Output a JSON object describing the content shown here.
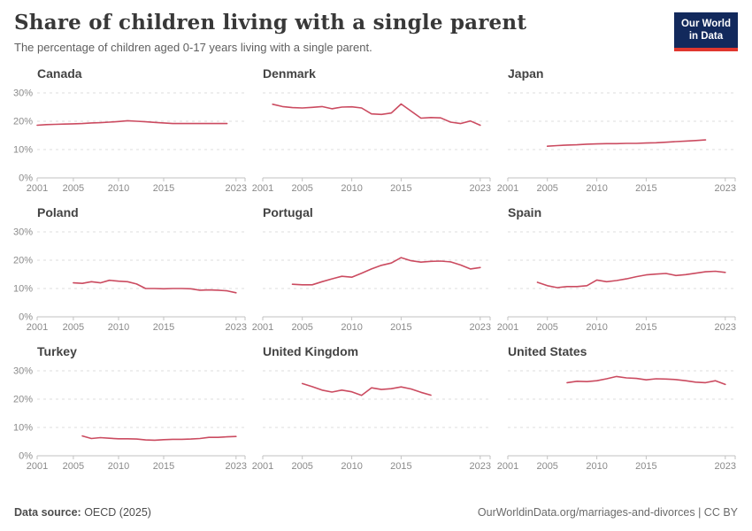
{
  "header": {
    "title": "Share of children living with a single parent",
    "subtitle": "The percentage of children aged 0-17 years living with a single parent.",
    "logo": {
      "line1": "Our World",
      "line2": "in Data",
      "bg_color": "#12295c",
      "accent_color": "#e0372e"
    }
  },
  "chart_data": {
    "type": "line",
    "title": "Share of children living with a single parent",
    "xlabel": "",
    "ylabel": "",
    "x_range": [
      2001,
      2024
    ],
    "x_ticks": [
      2001,
      2005,
      2010,
      2015,
      2023
    ],
    "y_range": [
      0,
      33
    ],
    "y_ticks": [
      0,
      10,
      20,
      30
    ],
    "y_tick_suffix": "%",
    "grid": "dashed horizontal gridlines, y labels only on left column",
    "legend_position": "none (facet titles)",
    "line_color": "#cb4b60",
    "grid_color": "#dcdcdc",
    "axis_color": "#c2c2c2",
    "tick_label_color": "#8a8a8a",
    "series": [
      {
        "name": "Canada",
        "x": [
          2001,
          2002,
          2003,
          2004,
          2005,
          2006,
          2007,
          2008,
          2009,
          2010,
          2011,
          2012,
          2013,
          2014,
          2015,
          2016,
          2017,
          2018,
          2019,
          2020,
          2021,
          2022
        ],
        "y": [
          18.6,
          18.8,
          18.9,
          19.0,
          19.1,
          19.2,
          19.4,
          19.5,
          19.7,
          19.9,
          20.2,
          20.0,
          19.8,
          19.6,
          19.4,
          19.2,
          19.2,
          19.2,
          19.2,
          19.2,
          19.2,
          19.2
        ]
      },
      {
        "name": "Denmark",
        "x": [
          2002,
          2003,
          2004,
          2005,
          2006,
          2007,
          2008,
          2009,
          2010,
          2011,
          2012,
          2013,
          2014,
          2015,
          2016,
          2017,
          2018,
          2019,
          2020,
          2021,
          2022,
          2023
        ],
        "y": [
          26.0,
          25.2,
          24.8,
          24.7,
          24.9,
          25.2,
          24.4,
          25.0,
          25.1,
          24.7,
          22.6,
          22.4,
          22.9,
          26.1,
          23.6,
          21.1,
          21.3,
          21.2,
          19.7,
          19.2,
          20.1,
          18.6
        ]
      },
      {
        "name": "Japan",
        "x": [
          2005,
          2006,
          2007,
          2008,
          2009,
          2010,
          2011,
          2012,
          2013,
          2014,
          2015,
          2016,
          2017,
          2018,
          2019,
          2020,
          2021
        ],
        "y": [
          11.2,
          11.4,
          11.6,
          11.7,
          11.9,
          12.0,
          12.1,
          12.1,
          12.2,
          12.2,
          12.3,
          12.4,
          12.6,
          12.8,
          13.0,
          13.2,
          13.4
        ]
      },
      {
        "name": "Poland",
        "x": [
          2005,
          2006,
          2007,
          2008,
          2009,
          2010,
          2011,
          2012,
          2013,
          2014,
          2015,
          2016,
          2017,
          2018,
          2019,
          2020,
          2021,
          2022,
          2023
        ],
        "y": [
          12.0,
          11.8,
          12.4,
          12.0,
          12.9,
          12.6,
          12.4,
          11.6,
          10.0,
          10.0,
          9.9,
          10.0,
          10.0,
          9.9,
          9.4,
          9.5,
          9.4,
          9.2,
          8.5
        ]
      },
      {
        "name": "Portugal",
        "x": [
          2004,
          2005,
          2006,
          2007,
          2008,
          2009,
          2010,
          2011,
          2012,
          2013,
          2014,
          2015,
          2016,
          2017,
          2018,
          2019,
          2020,
          2021,
          2022,
          2023
        ],
        "y": [
          11.5,
          11.3,
          11.3,
          12.4,
          13.4,
          14.3,
          14.0,
          15.4,
          16.9,
          18.2,
          19.0,
          20.9,
          19.8,
          19.3,
          19.6,
          19.7,
          19.4,
          18.3,
          16.9,
          17.4
        ]
      },
      {
        "name": "Spain",
        "x": [
          2004,
          2005,
          2006,
          2007,
          2008,
          2009,
          2010,
          2011,
          2012,
          2013,
          2014,
          2015,
          2016,
          2017,
          2018,
          2019,
          2020,
          2021,
          2022,
          2023
        ],
        "y": [
          12.2,
          11.0,
          10.3,
          10.7,
          10.7,
          11.0,
          13.0,
          12.4,
          12.8,
          13.4,
          14.2,
          14.8,
          15.1,
          15.3,
          14.6,
          14.9,
          15.4,
          15.9,
          16.1,
          15.7
        ]
      },
      {
        "name": "Turkey",
        "x": [
          2006,
          2007,
          2008,
          2009,
          2010,
          2011,
          2012,
          2013,
          2014,
          2015,
          2016,
          2017,
          2018,
          2019,
          2020,
          2021,
          2022,
          2023
        ],
        "y": [
          7.0,
          6.1,
          6.4,
          6.2,
          6.0,
          6.0,
          5.9,
          5.6,
          5.5,
          5.7,
          5.8,
          5.8,
          5.9,
          6.1,
          6.5,
          6.5,
          6.7,
          6.8
        ]
      },
      {
        "name": "United Kingdom",
        "x": [
          2005,
          2006,
          2007,
          2008,
          2009,
          2010,
          2011,
          2012,
          2013,
          2014,
          2015,
          2016,
          2017,
          2018
        ],
        "y": [
          25.5,
          24.4,
          23.2,
          22.5,
          23.2,
          22.6,
          21.3,
          24.0,
          23.4,
          23.7,
          24.3,
          23.6,
          22.4,
          21.4
        ]
      },
      {
        "name": "United States",
        "x": [
          2007,
          2008,
          2009,
          2010,
          2011,
          2012,
          2013,
          2014,
          2015,
          2016,
          2017,
          2018,
          2019,
          2020,
          2021,
          2022,
          2023
        ],
        "y": [
          25.8,
          26.3,
          26.2,
          26.5,
          27.2,
          28.0,
          27.5,
          27.3,
          26.8,
          27.2,
          27.1,
          26.9,
          26.5,
          26.0,
          25.8,
          26.5,
          25.2
        ]
      }
    ]
  },
  "footer": {
    "source_label": "Data source:",
    "source_value": " OECD (2025)",
    "link": "OurWorldinData.org/marriages-and-divorces",
    "separator": " | ",
    "license": "CC BY"
  }
}
